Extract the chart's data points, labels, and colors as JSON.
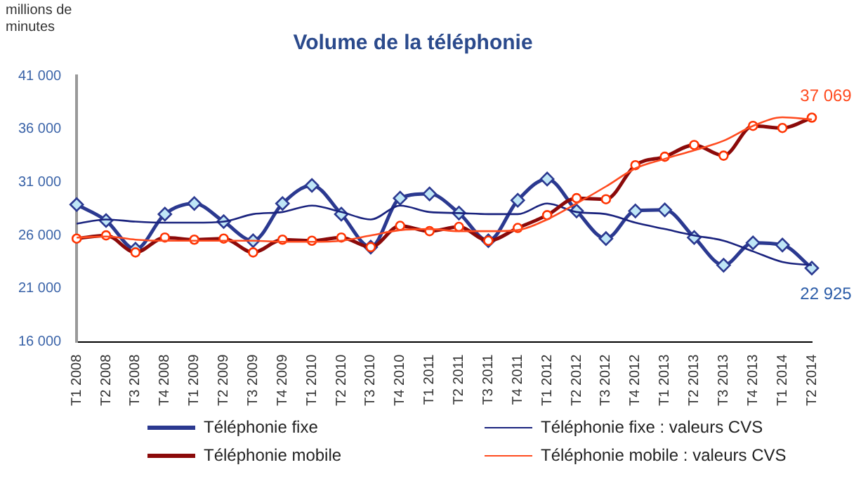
{
  "chart_data": {
    "type": "line",
    "title": "Volume de la téléphonie",
    "ylabel": "millions de minutes",
    "categories": [
      "T1 2008",
      "T2 2008",
      "T3 2008",
      "T4 2008",
      "T1 2009",
      "T2 2009",
      "T3 2009",
      "T4 2009",
      "T1 2010",
      "T2 2010",
      "T3 2010",
      "T4 2010",
      "T1 2011",
      "T2 2011",
      "T3 2011",
      "T4 2011",
      "T1 2012",
      "T2 2012",
      "T3 2012",
      "T4 2012",
      "T1 2013",
      "T2 2013",
      "T3 2013",
      "T4 2013",
      "T1 2014",
      "T2 2014"
    ],
    "series": [
      {
        "name": "Téléphonie fixe",
        "color": "#2b3990",
        "marker": "diamond",
        "values": [
          28900,
          27400,
          24700,
          28000,
          29000,
          27300,
          25500,
          29000,
          30700,
          28000,
          24900,
          29500,
          29900,
          28100,
          25500,
          29300,
          31300,
          28300,
          25700,
          28300,
          28400,
          25800,
          23200,
          25300,
          25100,
          22925
        ]
      },
      {
        "name": "Téléphonie fixe : valeurs CVS",
        "color": "#1a237e",
        "marker": "none",
        "values": [
          27100,
          27500,
          27300,
          27200,
          27200,
          27300,
          28000,
          28200,
          28800,
          28200,
          27500,
          28800,
          28200,
          28100,
          28000,
          28000,
          29000,
          28200,
          28000,
          27200,
          26600,
          26000,
          25500,
          24500,
          23500,
          23200
        ]
      },
      {
        "name": "Téléphonie mobile",
        "color": "#8b0a0a",
        "marker": "circle",
        "values": [
          25700,
          26000,
          24400,
          25800,
          25600,
          25700,
          24400,
          25600,
          25500,
          25800,
          24900,
          26900,
          26400,
          26800,
          25500,
          26700,
          27900,
          29500,
          29400,
          32600,
          33400,
          34500,
          33500,
          36300,
          36100,
          37069
        ]
      },
      {
        "name": "Téléphonie mobile : valeurs CVS",
        "color": "#ff4b1f",
        "marker": "none",
        "values": [
          25800,
          25900,
          25600,
          25500,
          25500,
          25500,
          25500,
          25400,
          25400,
          25500,
          26000,
          26500,
          26600,
          26400,
          26400,
          26500,
          27500,
          29000,
          30600,
          32300,
          33200,
          34000,
          34900,
          36300,
          37100,
          36900
        ]
      }
    ],
    "ylim": [
      16000,
      41000
    ],
    "yticks": [
      {
        "value": 16000,
        "label": "16 000"
      },
      {
        "value": 21000,
        "label": "21 000"
      },
      {
        "value": 26000,
        "label": "26 000"
      },
      {
        "value": 31000,
        "label": "31 000"
      },
      {
        "value": 36000,
        "label": "36 000"
      },
      {
        "value": 41000,
        "label": "41 000"
      }
    ],
    "annotations": [
      {
        "text": "37 069",
        "x": "T2 2014",
        "y": 37069
      },
      {
        "text": "22 925",
        "x": "T2 2014",
        "y": 22925
      }
    ],
    "grid": false,
    "legend": "bottom"
  }
}
